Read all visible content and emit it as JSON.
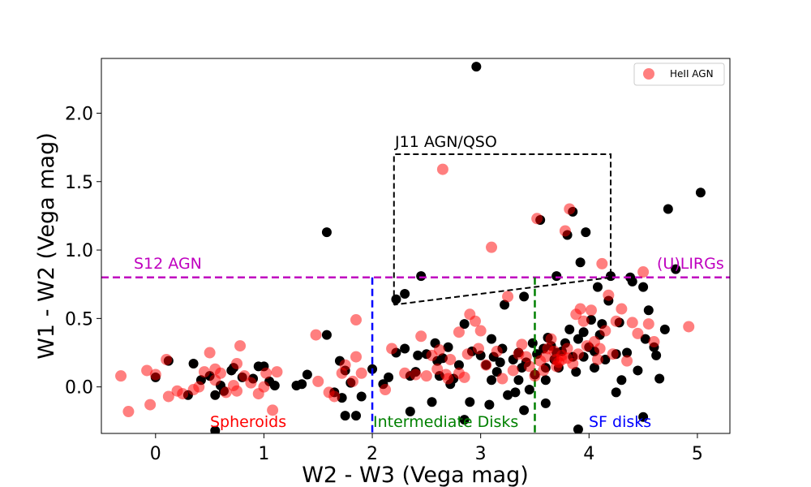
{
  "chart_data": {
    "type": "scatter",
    "xlabel": "W2 - W3 (Vega mag)",
    "ylabel": "W1 - W2 (Vega mag)",
    "xlim": [
      -0.5,
      5.3
    ],
    "ylim": [
      -0.34,
      2.4
    ],
    "xticks": [
      "0",
      "1",
      "2",
      "3",
      "4",
      "5"
    ],
    "yticks": [
      "0.0",
      "0.5",
      "1.0",
      "1.5",
      "2.0"
    ],
    "grid": false,
    "legend_position": "top-right",
    "legend": [
      "HeII AGN"
    ],
    "series": [
      {
        "label_key": "all",
        "color": "#000000",
        "marker": "filled circle",
        "points": [
          [
            0.0,
            0.07
          ],
          [
            0.12,
            0.19
          ],
          [
            0.3,
            -0.06
          ],
          [
            0.35,
            0.17
          ],
          [
            0.42,
            0.05
          ],
          [
            0.5,
            0.08
          ],
          [
            0.55,
            -0.06
          ],
          [
            0.6,
            0.01
          ],
          [
            0.63,
            -0.03
          ],
          [
            0.7,
            0.12
          ],
          [
            0.72,
            0.14
          ],
          [
            0.8,
            0.07
          ],
          [
            0.9,
            0.06
          ],
          [
            0.95,
            0.15
          ],
          [
            1.0,
            0.15
          ],
          [
            1.05,
            0.04
          ],
          [
            1.1,
            0.01
          ],
          [
            1.3,
            0.01
          ],
          [
            1.35,
            0.02
          ],
          [
            1.4,
            0.09
          ],
          [
            1.58,
            0.38
          ],
          [
            1.58,
            1.13
          ],
          [
            1.65,
            -0.04
          ],
          [
            1.7,
            0.19
          ],
          [
            1.72,
            -0.08
          ],
          [
            1.75,
            0.12
          ],
          [
            1.75,
            -0.21
          ],
          [
            1.8,
            0.03
          ],
          [
            1.85,
            -0.21
          ],
          [
            1.9,
            -0.07
          ],
          [
            2.0,
            0.13
          ],
          [
            2.1,
            0.02
          ],
          [
            2.15,
            0.07
          ],
          [
            2.22,
            0.25
          ],
          [
            2.22,
            0.64
          ],
          [
            2.3,
            0.28
          ],
          [
            2.3,
            0.68
          ],
          [
            2.35,
            0.08
          ],
          [
            2.4,
            0.11
          ],
          [
            2.42,
            0.23
          ],
          [
            2.45,
            0.81
          ],
          [
            2.5,
            0.24
          ],
          [
            2.55,
            -0.11
          ],
          [
            2.58,
            0.32
          ],
          [
            2.6,
            0.19
          ],
          [
            2.62,
            0.08
          ],
          [
            2.65,
            0.21
          ],
          [
            2.7,
            0.29
          ],
          [
            2.72,
            0.02
          ],
          [
            2.75,
            0.06
          ],
          [
            2.8,
            0.16
          ],
          [
            2.85,
            0.46
          ],
          [
            2.9,
            -0.11
          ],
          [
            2.92,
            0.26
          ],
          [
            2.96,
            2.34
          ],
          [
            3.0,
            0.23
          ],
          [
            3.05,
            0.16
          ],
          [
            3.08,
            -0.13
          ],
          [
            3.1,
            0.35
          ],
          [
            3.12,
            0.22
          ],
          [
            3.15,
            0.11
          ],
          [
            3.18,
            0.18
          ],
          [
            3.2,
            0.28
          ],
          [
            3.22,
            0.6
          ],
          [
            3.25,
            -0.06
          ],
          [
            3.3,
            0.2
          ],
          [
            3.32,
            -0.04
          ],
          [
            3.35,
            0.25
          ],
          [
            3.38,
            0.14
          ],
          [
            3.4,
            0.66
          ],
          [
            3.42,
            0.18
          ],
          [
            3.45,
            -0.02
          ],
          [
            3.48,
            0.32
          ],
          [
            3.5,
            0.09
          ],
          [
            3.52,
            0.24
          ],
          [
            3.55,
            1.22
          ],
          [
            3.58,
            0.28
          ],
          [
            3.6,
            0.05
          ],
          [
            3.62,
            0.36
          ],
          [
            3.65,
            0.3
          ],
          [
            3.68,
            0.2
          ],
          [
            3.7,
            0.81
          ],
          [
            3.72,
            0.14
          ],
          [
            3.75,
            0.26
          ],
          [
            3.8,
            1.11
          ],
          [
            3.82,
            0.42
          ],
          [
            3.85,
            1.28
          ],
          [
            3.88,
            0.11
          ],
          [
            3.9,
            0.35
          ],
          [
            3.92,
            0.91
          ],
          [
            3.95,
            0.22
          ],
          [
            3.97,
            1.13
          ],
          [
            4.0,
            0.29
          ],
          [
            4.02,
            0.49
          ],
          [
            4.05,
            0.14
          ],
          [
            4.08,
            0.73
          ],
          [
            4.1,
            0.38
          ],
          [
            4.12,
            0.46
          ],
          [
            4.15,
            0.2
          ],
          [
            4.18,
            0.63
          ],
          [
            4.2,
            0.81
          ],
          [
            4.25,
            0.24
          ],
          [
            4.28,
            0.47
          ],
          [
            4.3,
            0.05
          ],
          [
            4.35,
            0.25
          ],
          [
            4.38,
            0.8
          ],
          [
            4.4,
            0.77
          ],
          [
            4.45,
            0.12
          ],
          [
            4.5,
            0.73
          ],
          [
            4.52,
            0.35
          ],
          [
            4.55,
            0.56
          ],
          [
            4.6,
            0.29
          ],
          [
            4.62,
            0.23
          ],
          [
            4.65,
            0.06
          ],
          [
            4.7,
            0.42
          ],
          [
            4.73,
            1.3
          ],
          [
            4.8,
            0.86
          ],
          [
            5.03,
            1.42
          ],
          [
            3.4,
            -0.17
          ],
          [
            3.6,
            -0.12
          ],
          [
            3.9,
            -0.31
          ],
          [
            4.25,
            -0.04
          ],
          [
            4.5,
            -0.22
          ],
          [
            2.35,
            -0.18
          ],
          [
            2.85,
            -0.24
          ],
          [
            0.55,
            -0.32
          ],
          [
            3.6,
            0.14
          ],
          [
            3.7,
            0.25
          ],
          [
            3.85,
            0.22
          ],
          [
            3.35,
            0.05
          ],
          [
            3.1,
            0.05
          ],
          [
            4.05,
            0.26
          ],
          [
            3.95,
            0.4
          ],
          [
            3.78,
            0.32
          ]
        ]
      },
      {
        "label_key": "heii",
        "color": "#ff0000",
        "marker": "filled circle, alpha 0.5",
        "points": [
          [
            -0.32,
            0.08
          ],
          [
            -0.25,
            -0.18
          ],
          [
            -0.08,
            0.12
          ],
          [
            -0.05,
            -0.13
          ],
          [
            0.0,
            0.09
          ],
          [
            0.1,
            0.2
          ],
          [
            0.12,
            -0.07
          ],
          [
            0.2,
            -0.03
          ],
          [
            0.25,
            -0.05
          ],
          [
            0.35,
            -0.02
          ],
          [
            0.4,
            0.0
          ],
          [
            0.45,
            0.11
          ],
          [
            0.5,
            0.25
          ],
          [
            0.55,
            0.05
          ],
          [
            0.55,
            0.13
          ],
          [
            0.6,
            0.1
          ],
          [
            0.65,
            -0.04
          ],
          [
            0.72,
            0.01
          ],
          [
            0.75,
            -0.03
          ],
          [
            0.75,
            0.17
          ],
          [
            0.78,
            0.3
          ],
          [
            0.82,
            0.08
          ],
          [
            0.88,
            0.03
          ],
          [
            0.95,
            -0.05
          ],
          [
            1.0,
            0.0
          ],
          [
            1.02,
            0.1
          ],
          [
            1.08,
            -0.17
          ],
          [
            1.12,
            0.11
          ],
          [
            1.48,
            0.38
          ],
          [
            1.5,
            0.04
          ],
          [
            1.6,
            -0.04
          ],
          [
            1.65,
            -0.07
          ],
          [
            1.72,
            0.1
          ],
          [
            1.75,
            0.16
          ],
          [
            1.82,
            0.04
          ],
          [
            1.85,
            0.22
          ],
          [
            1.85,
            0.49
          ],
          [
            1.9,
            0.1
          ],
          [
            2.12,
            -0.02
          ],
          [
            2.18,
            0.28
          ],
          [
            2.3,
            0.1
          ],
          [
            2.4,
            0.09
          ],
          [
            2.45,
            0.37
          ],
          [
            2.5,
            0.08
          ],
          [
            2.55,
            0.23
          ],
          [
            2.6,
            0.13
          ],
          [
            2.62,
            0.27
          ],
          [
            2.65,
            1.59
          ],
          [
            2.68,
            0.09
          ],
          [
            2.7,
            0.06
          ],
          [
            2.72,
            0.2
          ],
          [
            2.8,
            0.4
          ],
          [
            2.8,
            0.1
          ],
          [
            2.85,
            0.07
          ],
          [
            2.88,
            0.24
          ],
          [
            2.9,
            0.53
          ],
          [
            2.95,
            0.48
          ],
          [
            2.98,
            0.28
          ],
          [
            3.0,
            0.41
          ],
          [
            3.05,
            0.16
          ],
          [
            3.1,
            1.02
          ],
          [
            3.15,
            0.26
          ],
          [
            3.2,
            0.06
          ],
          [
            3.25,
            0.66
          ],
          [
            3.3,
            0.12
          ],
          [
            3.35,
            0.24
          ],
          [
            3.38,
            0.31
          ],
          [
            3.42,
            0.22
          ],
          [
            3.45,
            0.15
          ],
          [
            3.5,
            0.08
          ],
          [
            3.52,
            1.23
          ],
          [
            3.55,
            0.19
          ],
          [
            3.58,
            0.12
          ],
          [
            3.62,
            0.28
          ],
          [
            3.65,
            0.35
          ],
          [
            3.7,
            0.2
          ],
          [
            3.72,
            0.18
          ],
          [
            3.75,
            0.23
          ],
          [
            3.78,
            1.14
          ],
          [
            3.8,
            0.21
          ],
          [
            3.82,
            1.3
          ],
          [
            3.85,
            0.17
          ],
          [
            3.88,
            0.53
          ],
          [
            3.9,
            0.24
          ],
          [
            3.92,
            0.57
          ],
          [
            3.95,
            0.48
          ],
          [
            3.98,
            0.3
          ],
          [
            4.02,
            0.56
          ],
          [
            4.05,
            0.33
          ],
          [
            4.08,
            0.2
          ],
          [
            4.1,
            0.28
          ],
          [
            4.12,
            0.9
          ],
          [
            4.15,
            0.41
          ],
          [
            4.18,
            0.67
          ],
          [
            4.22,
            0.24
          ],
          [
            4.25,
            0.48
          ],
          [
            4.3,
            0.57
          ],
          [
            4.35,
            0.19
          ],
          [
            4.4,
            0.47
          ],
          [
            4.45,
            0.39
          ],
          [
            4.5,
            0.84
          ],
          [
            4.55,
            0.46
          ],
          [
            4.6,
            0.33
          ],
          [
            4.92,
            0.44
          ],
          [
            3.75,
            0.2
          ],
          [
            3.7,
            0.15
          ],
          [
            3.8,
            0.28
          ],
          [
            3.6,
            0.22
          ],
          [
            3.68,
            0.26
          ]
        ]
      }
    ],
    "annotations": {
      "s12_agn": "S12 AGN",
      "ulirgs": "(U)LIRGs",
      "j11_agn_qso": "J11 AGN/QSO",
      "spheroids": "Spheroids",
      "intermediate_disks": "Intermediate Disks",
      "sf_disks": "SF disks"
    },
    "lines": {
      "s12_threshold_y": 0.8,
      "blue_divider_x": 2.0,
      "green_divider_x": 3.5,
      "j11_box": [
        [
          2.2,
          0.6
        ],
        [
          2.2,
          1.7
        ],
        [
          4.2,
          1.7
        ],
        [
          4.2,
          0.8
        ],
        [
          2.2,
          0.6
        ]
      ]
    },
    "colors": {
      "s12_line": "#bf00bf",
      "blue_divider": "#0000ff",
      "green_divider": "#008000",
      "j11_box": "#000000",
      "spheroids_text": "#ff0000",
      "intermediate_text": "#008000",
      "sf_text": "#0000ff",
      "s12_text": "#bf00bf",
      "ulirgs_text": "#bf00bf"
    }
  }
}
